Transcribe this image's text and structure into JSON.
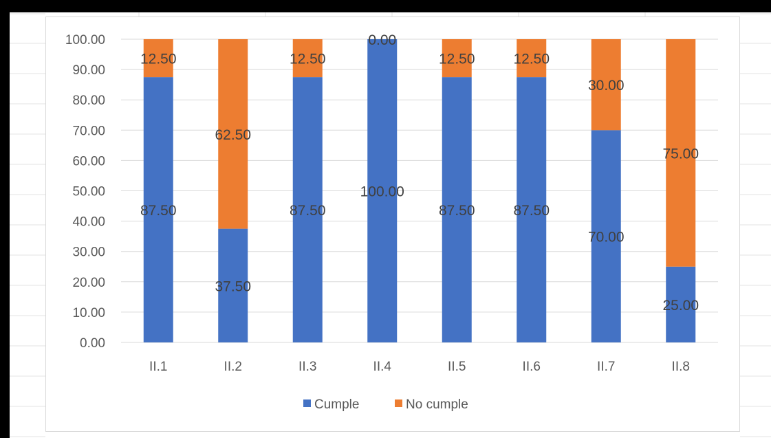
{
  "chart_data": {
    "type": "bar",
    "stacked": true,
    "categories": [
      "II.1",
      "II.2",
      "II.3",
      "II.4",
      "II.5",
      "II.6",
      "II.7",
      "II.8"
    ],
    "series": [
      {
        "name": "Cumple",
        "color": "#4472c4",
        "values": [
          87.5,
          37.5,
          87.5,
          100.0,
          87.5,
          87.5,
          70.0,
          25.0
        ],
        "labels": [
          "87.50",
          "37.50",
          "87.50",
          "100.00",
          "87.50",
          "87.50",
          "70.00",
          "25.00"
        ]
      },
      {
        "name": "No cumple",
        "color": "#ed7d31",
        "values": [
          12.5,
          62.5,
          12.5,
          0.0,
          12.5,
          12.5,
          30.0,
          75.0
        ],
        "labels": [
          "12.50",
          "62.50",
          "12.50",
          "0.00",
          "12.50",
          "12.50",
          "30.00",
          "75.00"
        ]
      }
    ],
    "yticks": [
      "0.00",
      "10.00",
      "20.00",
      "30.00",
      "40.00",
      "50.00",
      "60.00",
      "70.00",
      "80.00",
      "90.00",
      "100.00"
    ],
    "ylim": [
      0,
      100
    ],
    "grid": true,
    "legend_position": "bottom",
    "title": "",
    "xlabel": "",
    "ylabel": ""
  }
}
